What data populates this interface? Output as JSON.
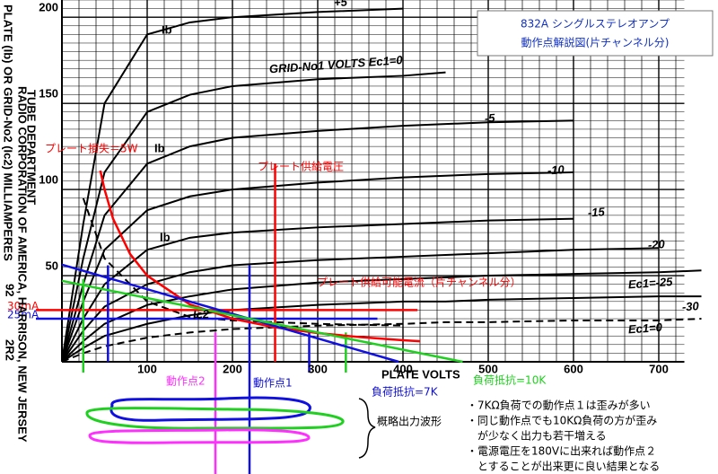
{
  "chart_data": {
    "type": "line",
    "title": [
      "832A シングルステレオアンプ",
      "動作点解説図(片チャンネル分)"
    ],
    "xlabel": "PLATE VOLTS",
    "ylabel": "PLATE (Ib) OR GRID-No2 (Ic2) MILLIAMPERES",
    "side_texts": [
      "RADIO CORPORATION OF AMERICA, HARRISON, NEW JERSEY",
      "TUBE DEPARTMENT",
      "92",
      "2R2"
    ],
    "xlim": [
      0,
      730
    ],
    "ylim": [
      0,
      210
    ],
    "xticks": [
      100,
      200,
      300,
      400,
      500,
      600,
      700
    ],
    "yticks": [
      50,
      100,
      150,
      200
    ],
    "grid": true,
    "grid_step": [
      20,
      5
    ],
    "x": [
      0,
      25,
      50,
      100,
      150,
      200,
      300,
      400,
      450,
      500,
      600,
      700,
      750
    ],
    "series": [
      {
        "name": "+5",
        "color": "#000000",
        "values": [
          0,
          80,
          150,
          190,
          197,
          200,
          203,
          205,
          null,
          null,
          null,
          null,
          null
        ]
      },
      {
        "name": "GRID-No1 VOLTS Ec1=0",
        "color": "#000000",
        "values": [
          0,
          60,
          110,
          145,
          155,
          160,
          164,
          166,
          168,
          null,
          null,
          null,
          null
        ]
      },
      {
        "name": "-5",
        "color": "#000000",
        "values": [
          0,
          45,
          85,
          115,
          125,
          130,
          134,
          137,
          138,
          139,
          140,
          null,
          null
        ]
      },
      {
        "name": "-10",
        "color": "#000000",
        "values": [
          0,
          35,
          65,
          88,
          96,
          100,
          104,
          107,
          108,
          109,
          110,
          null,
          null
        ]
      },
      {
        "name": "-15",
        "color": "#000000",
        "values": [
          0,
          25,
          45,
          65,
          72,
          75,
          78,
          80,
          81,
          82,
          83,
          null,
          null
        ]
      },
      {
        "name": "-20",
        "color": "#000000",
        "values": [
          0,
          18,
          32,
          45,
          52,
          56,
          59,
          61,
          62,
          63,
          65,
          66,
          null
        ]
      },
      {
        "name": "Ec1=-25",
        "color": "#000000",
        "values": [
          0,
          12,
          22,
          33,
          38,
          42,
          46,
          48,
          49,
          50,
          51,
          52,
          53
        ]
      },
      {
        "name": "-30",
        "color": "#000000",
        "values": [
          0,
          8,
          15,
          22,
          27,
          30,
          33,
          35,
          35,
          36,
          37,
          38,
          38
        ]
      },
      {
        "name": "Ec1=0",
        "color": "#000000",
        "dashed": true,
        "values": [
          0,
          5,
          9,
          14,
          17,
          19,
          21,
          22,
          23,
          23,
          24,
          24,
          25
        ]
      },
      {
        "name": "Ic2",
        "color": "#000000",
        "dashed": true,
        "values": [
          null,
          95,
          60,
          35,
          26,
          24,
          22,
          21,
          null,
          null,
          null,
          null,
          null
        ]
      }
    ],
    "curve_labels": [
      "Ib",
      "Ib",
      "Ib"
    ],
    "dissipation": {
      "name": "プレート損失＝5W",
      "color": "#ff0000",
      "x": [
        45,
        50,
        60,
        80,
        100,
        150,
        200,
        250,
        300,
        350,
        400,
        420
      ],
      "values": [
        111,
        100,
        83,
        62.5,
        50,
        33.3,
        25,
        20,
        16.7,
        14.3,
        12.5,
        11.9
      ]
    },
    "load_lines": [
      {
        "name": "負荷抵抗=7K",
        "color": "#1010e0",
        "x": [
          0,
          395
        ],
        "values": [
          56.4,
          0
        ]
      },
      {
        "name": "負荷抵抗=10K",
        "color": "#20d020",
        "x": [
          0,
          470
        ],
        "values": [
          47,
          0
        ]
      }
    ],
    "hlines": [
      {
        "value": 30,
        "label": "30mA",
        "color": "#ff0000",
        "to": 417
      },
      {
        "value": 25,
        "label": "25mA",
        "color": "#1010e0",
        "to": 370
      }
    ],
    "supply_current_label": "プレート供給可能電流（片チャンネル分）",
    "vlines": [
      {
        "value": 25,
        "top": 48,
        "color": "#20d020"
      },
      {
        "value": 54,
        "top": 56,
        "color": "#1010e0"
      },
      {
        "value": 180,
        "top": 17,
        "color": "#ff30ff",
        "label": "動作点2"
      },
      {
        "value": 220,
        "top": 56,
        "color": "#1010e0",
        "label": "動作点1"
      },
      {
        "value": 250,
        "top": 115,
        "color": "#ff0000",
        "label": "プレート供給電圧"
      },
      {
        "value": 290,
        "top": 17,
        "color": "#1010e0"
      },
      {
        "value": 333,
        "top": 17,
        "color": "#20d020"
      }
    ],
    "waveform_label": "概略出力波形",
    "notes": [
      "・7KΩ負荷での動作点１は歪みが多い",
      "・同じ動作点でも10KΩ負荷の方が歪み",
      "　が少なく出力も若干増える",
      "・電源電圧を180Vに出来れば動作点２",
      "　とすることが出来更に良い結果となる"
    ]
  }
}
